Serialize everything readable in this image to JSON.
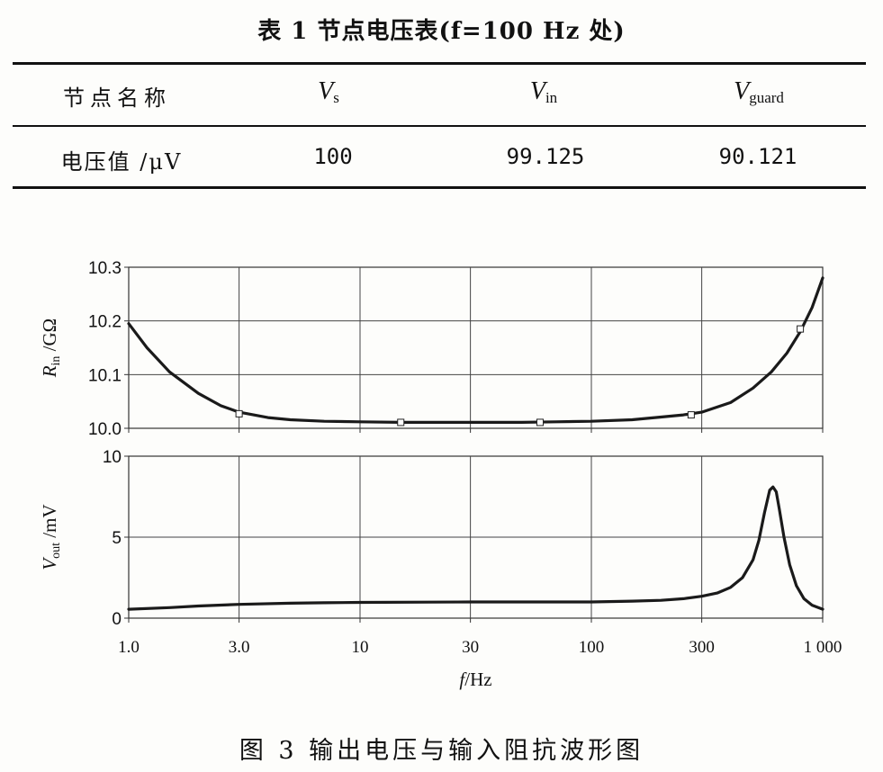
{
  "table": {
    "title": "表 1   节点电压表(f=100 Hz 处)",
    "header": {
      "col0": "节点名称",
      "col1_sym": "V",
      "col1_sub": "s",
      "col2_sym": "V",
      "col2_sub": "in",
      "col3_sym": "V",
      "col3_sub": "guard"
    },
    "row": {
      "label": "电压值 /μV",
      "values": [
        "100",
        "99.125",
        "90.121"
      ]
    }
  },
  "figure": {
    "caption": "图 3   输出电压与输入阻抗波形图",
    "line_color": "#1a1a1a"
  },
  "chart_data": [
    {
      "type": "line",
      "xscale": "log",
      "x_ticks": [
        "1.0",
        "3.0",
        "10",
        "30",
        "100",
        "300",
        "1 000"
      ],
      "xlim": [
        1,
        1000
      ],
      "ylim": [
        10.0,
        10.3
      ],
      "y_ticks": [
        "10.3",
        "10.2",
        "10.1",
        "10.0"
      ],
      "ylabel_sym": "R",
      "ylabel_sub": "in",
      "ylabel_unit": " /GΩ",
      "grid": true,
      "x": [
        1,
        1.2,
        1.5,
        2,
        2.5,
        3,
        4,
        5,
        7,
        10,
        15,
        20,
        30,
        50,
        70,
        100,
        150,
        200,
        250,
        300,
        400,
        500,
        600,
        700,
        800,
        900,
        1000
      ],
      "y": [
        10.195,
        10.15,
        10.105,
        10.065,
        10.042,
        10.03,
        10.02,
        10.016,
        10.013,
        10.012,
        10.011,
        10.011,
        10.011,
        10.011,
        10.012,
        10.013,
        10.016,
        10.021,
        10.025,
        10.03,
        10.048,
        10.075,
        10.105,
        10.14,
        10.18,
        10.225,
        10.28
      ],
      "markers_x": [
        3,
        15,
        60,
        270,
        800
      ],
      "markers_y": [
        10.027,
        10.011,
        10.011,
        10.025,
        10.185
      ]
    },
    {
      "type": "line",
      "xscale": "log",
      "x_ticks": [
        "1.0",
        "3.0",
        "10",
        "30",
        "100",
        "300",
        "1 000"
      ],
      "xlim": [
        1,
        1000
      ],
      "ylim": [
        0,
        10
      ],
      "y_ticks": [
        "10",
        "5",
        "0"
      ],
      "ylabel_sym": "V",
      "ylabel_sub": "out",
      "ylabel_unit": " /mV",
      "xlabel_sym": "f",
      "xlabel_unit": "/Hz",
      "grid": true,
      "x": [
        1,
        1.5,
        2,
        3,
        5,
        7,
        10,
        20,
        30,
        50,
        100,
        150,
        200,
        250,
        300,
        350,
        400,
        450,
        500,
        530,
        560,
        590,
        610,
        630,
        650,
        680,
        720,
        770,
        830,
        900,
        1000
      ],
      "y": [
        0.55,
        0.65,
        0.75,
        0.85,
        0.92,
        0.95,
        0.97,
        0.99,
        1.0,
        1.0,
        1.0,
        1.05,
        1.1,
        1.2,
        1.35,
        1.55,
        1.9,
        2.5,
        3.6,
        4.8,
        6.5,
        7.9,
        8.1,
        7.8,
        6.7,
        5.0,
        3.3,
        2.0,
        1.2,
        0.8,
        0.55
      ]
    }
  ]
}
